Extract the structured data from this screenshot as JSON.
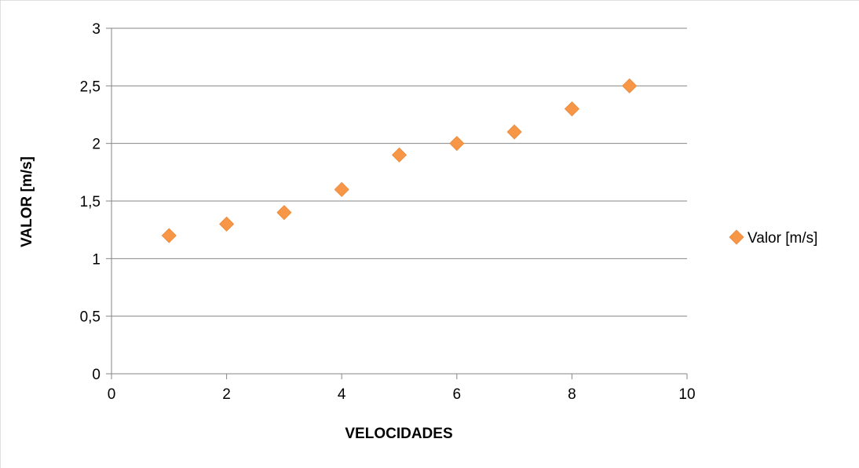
{
  "chart_data": {
    "type": "scatter",
    "title": "",
    "xlabel": "VELOCIDADES",
    "ylabel": "VALOR [m/s]",
    "xlim": [
      0,
      10
    ],
    "ylim": [
      0,
      3
    ],
    "xticks": [
      0,
      2,
      4,
      6,
      8,
      10
    ],
    "yticks": [
      0,
      0.5,
      1,
      1.5,
      2,
      2.5,
      3
    ],
    "xtick_labels": [
      "0",
      "2",
      "4",
      "6",
      "8",
      "10"
    ],
    "ytick_labels": [
      "0",
      "0,5",
      "1",
      "1,5",
      "2",
      "2,5",
      "3"
    ],
    "grid": "horizontal",
    "legend_position": "right",
    "series": [
      {
        "name": "Valor [m/s]",
        "color": "#F79646",
        "marker": "diamond",
        "x": [
          1,
          2,
          3,
          4,
          5,
          6,
          7,
          8,
          9
        ],
        "y": [
          1.2,
          1.3,
          1.4,
          1.6,
          1.9,
          2.0,
          2.1,
          2.3,
          2.5
        ]
      }
    ]
  }
}
